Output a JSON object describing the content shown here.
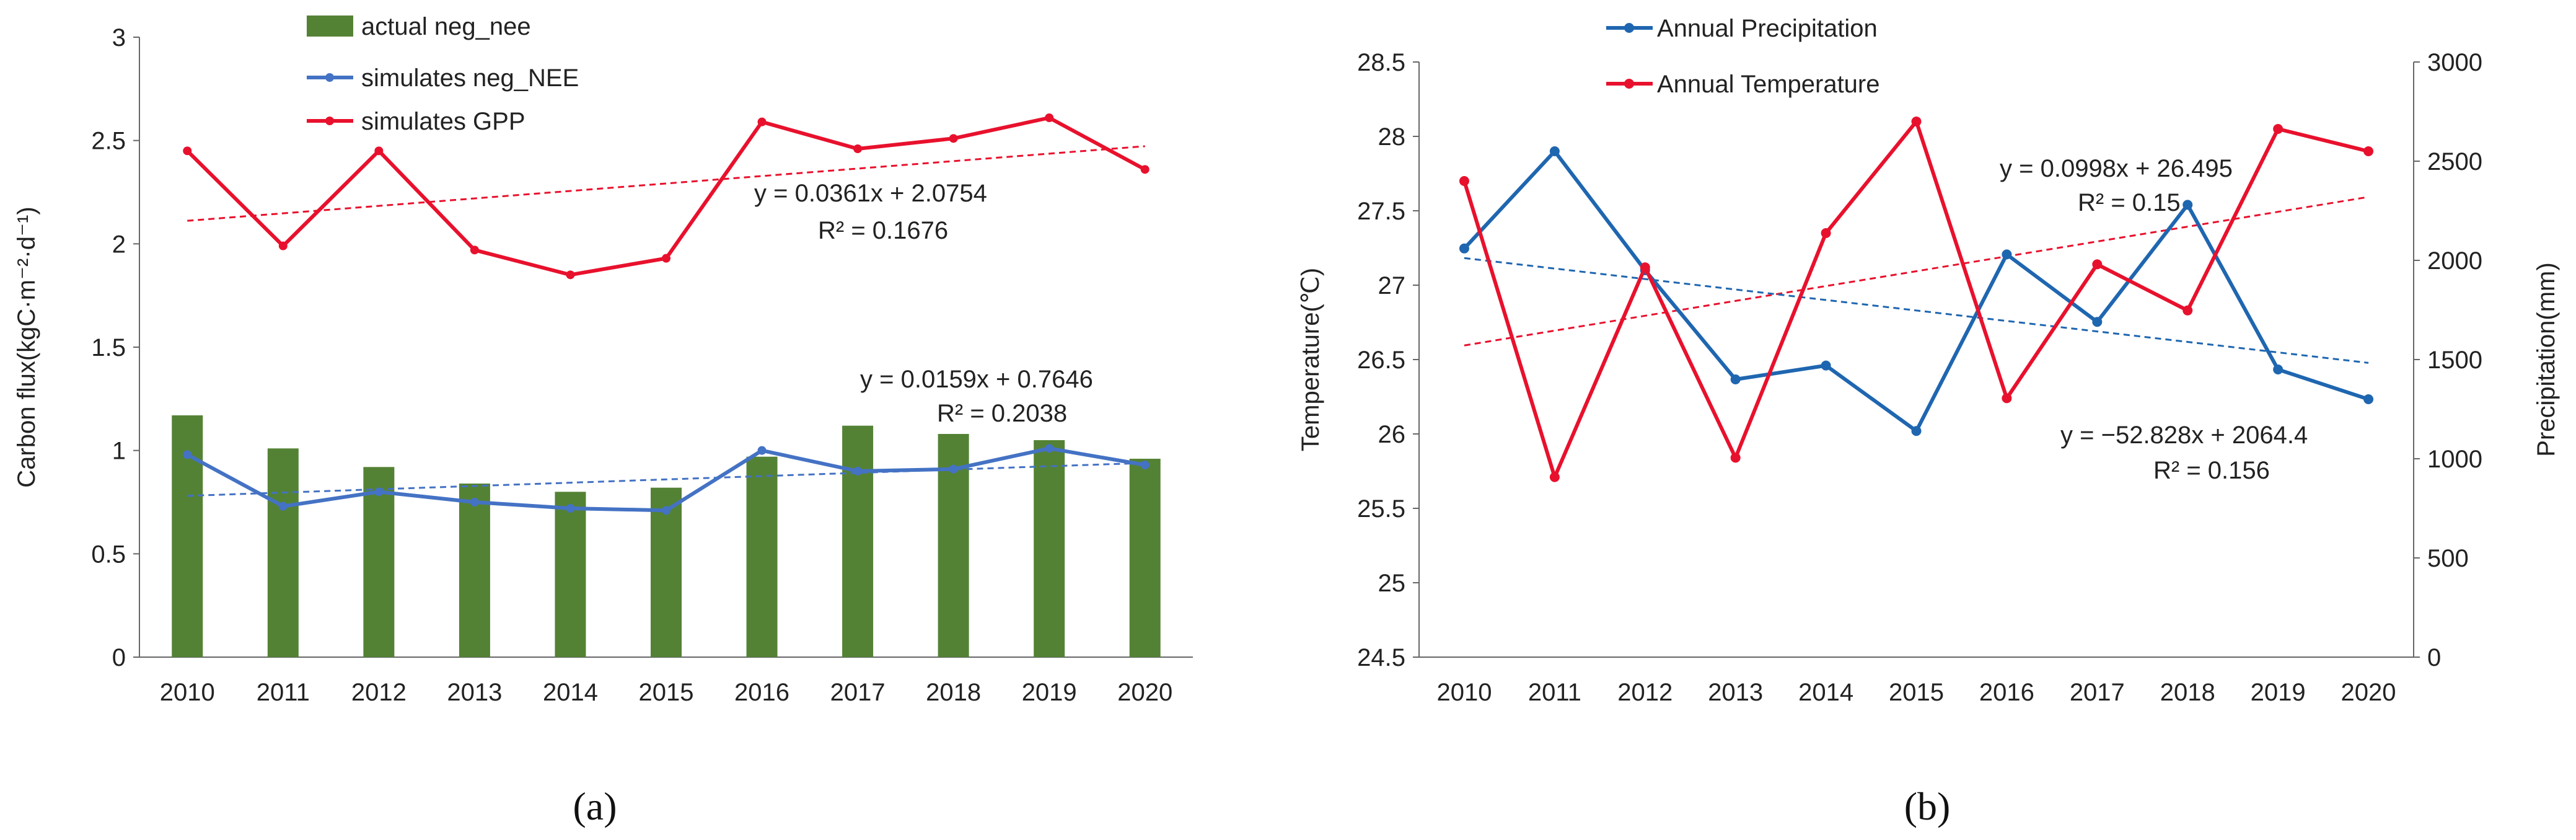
{
  "chart_data": [
    {
      "type": "bar+line",
      "panel_label": "a",
      "x": [
        "2010",
        "2011",
        "2012",
        "2013",
        "2014",
        "2015",
        "2016",
        "2017",
        "2018",
        "2019",
        "2020"
      ],
      "ylabel": "Carbon flux(kgC·m⁻²·d⁻¹)",
      "ylim": [
        0,
        3
      ],
      "yticks": [
        "0",
        "0.5",
        "1",
        "1.5",
        "2",
        "2.5",
        "3"
      ],
      "series": [
        {
          "name": "actual neg_nee",
          "kind": "bar",
          "color": "#548235",
          "values": [
            1.17,
            1.01,
            0.92,
            0.84,
            0.8,
            0.82,
            0.97,
            1.12,
            1.08,
            1.05,
            0.96
          ]
        },
        {
          "name": "simulates neg_NEE",
          "kind": "line",
          "color": "#4472C4",
          "values": [
            0.98,
            0.73,
            0.8,
            0.75,
            0.72,
            0.71,
            1.0,
            0.9,
            0.91,
            1.01,
            0.93
          ]
        },
        {
          "name": "simulates GPP",
          "kind": "line",
          "color": "#E8112D",
          "values": [
            2.45,
            1.99,
            2.45,
            1.97,
            1.85,
            1.93,
            2.59,
            2.46,
            2.51,
            2.61,
            2.36
          ]
        }
      ],
      "trendlines": [
        {
          "series": "simulates GPP",
          "color": "#E8112D",
          "slope": 0.0361,
          "intercept": 2.0754,
          "equation": "y = 0.0361x + 2.0754",
          "r2": "R² = 0.1676"
        },
        {
          "series": "simulates neg_NEE",
          "color": "#4472C4",
          "slope": 0.0159,
          "intercept": 0.7646,
          "equation": "y = 0.0159x + 0.7646",
          "r2": "R² = 0.2038"
        }
      ]
    },
    {
      "type": "line",
      "panel_label": "b",
      "x": [
        "2010",
        "2011",
        "2012",
        "2013",
        "2014",
        "2015",
        "2016",
        "2017",
        "2018",
        "2019",
        "2020"
      ],
      "ylabel_left": "Temperature(℃)",
      "ylabel_right": "Precipitation(mm)",
      "ylim_left": [
        24.5,
        28.5
      ],
      "ylim_right": [
        0,
        3000
      ],
      "yticks_left": [
        "24.5",
        "25",
        "25.5",
        "26",
        "26.5",
        "27",
        "27.5",
        "28",
        "28.5"
      ],
      "yticks_right": [
        "0",
        "500",
        "1000",
        "1500",
        "2000",
        "2500",
        "3000"
      ],
      "series": [
        {
          "name": "Annual Precipitation",
          "axis": "right",
          "color": "#1F66B0",
          "values": [
            2060,
            2550,
            1950,
            1400,
            1470,
            1140,
            2030,
            1690,
            2280,
            1450,
            1300
          ]
        },
        {
          "name": "Annual Temperature",
          "axis": "left",
          "color": "#E8112D",
          "values": [
            27.7,
            25.71,
            27.12,
            25.84,
            27.35,
            28.1,
            26.24,
            27.14,
            26.83,
            28.05,
            27.9
          ]
        }
      ],
      "trendlines": [
        {
          "series": "Annual Temperature",
          "axis": "left",
          "color": "#E8112D",
          "slope": 0.0998,
          "intercept": 26.495,
          "equation": "y = 0.0998x + 26.495",
          "r2": "R² = 0.15"
        },
        {
          "series": "Annual Precipitation",
          "axis": "right",
          "color": "#1F66B0",
          "slope": -52.828,
          "intercept": 2064.4,
          "equation": "y = −52.828x + 2064.4",
          "r2": "R² = 0.156"
        }
      ]
    }
  ]
}
